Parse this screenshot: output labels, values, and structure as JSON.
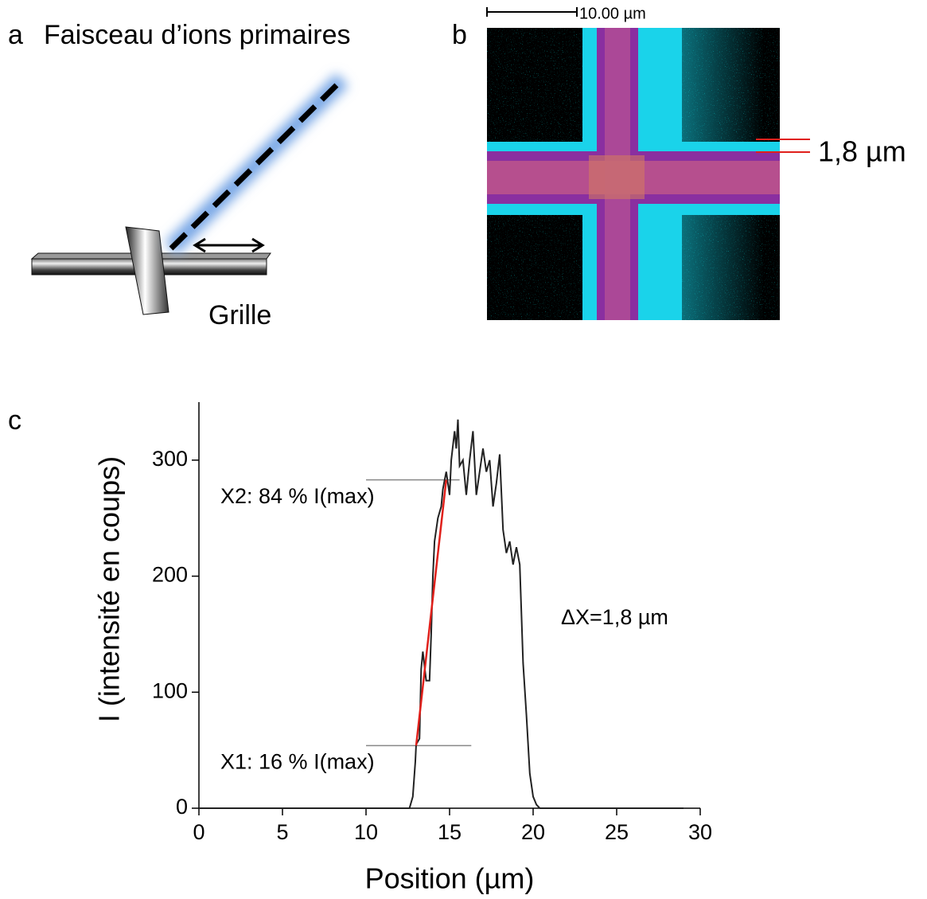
{
  "panel_a": {
    "label": "a",
    "title": "Faisceau d’ions primaires",
    "grid_label": "Grille"
  },
  "panel_b": {
    "label": "b",
    "scale_bar": "10.00 µm",
    "width_label": "1,8 µm"
  },
  "chart_data": {
    "type": "line",
    "panel_label": "c",
    "x_label": "Position (µm)",
    "y_label": "I (intensité en coups)",
    "x": [
      0,
      12.6,
      12.8,
      12.95,
      13.0,
      13.2,
      13.3,
      13.4,
      13.6,
      13.8,
      13.9,
      14.0,
      14.1,
      14.3,
      14.5,
      14.6,
      14.8,
      15.0,
      15.1,
      15.3,
      15.4,
      15.5,
      15.6,
      15.8,
      16.0,
      16.2,
      16.4,
      16.6,
      16.8,
      17.0,
      17.2,
      17.4,
      17.6,
      17.8,
      18.0,
      18.2,
      18.4,
      18.6,
      18.8,
      19.0,
      19.2,
      19.4,
      19.6,
      19.8,
      20.0,
      20.2,
      20.4,
      29.0
    ],
    "values": [
      0,
      0,
      10,
      40,
      55,
      60,
      120,
      135,
      110,
      110,
      150,
      200,
      230,
      250,
      260,
      275,
      290,
      270,
      300,
      325,
      310,
      335,
      295,
      300,
      270,
      300,
      325,
      270,
      290,
      310,
      290,
      300,
      260,
      280,
      305,
      240,
      220,
      230,
      210,
      225,
      210,
      125,
      80,
      30,
      10,
      3,
      0,
      0
    ],
    "color": "#222222",
    "xlim": [
      0,
      30
    ],
    "ylim": [
      0,
      350
    ],
    "xticks": [
      0,
      5,
      10,
      15,
      20,
      25,
      30
    ],
    "yticks": [
      0,
      100,
      200,
      300
    ],
    "annotations": [
      {
        "text": "X2: 84 % I(max)",
        "x": 10,
        "y": 283,
        "x_end": 15.6
      },
      {
        "text": "X1: 16 % I(max)",
        "x": 10,
        "y": 54,
        "x_end": 16.3
      }
    ],
    "fit_line": {
      "x": [
        13.0,
        14.8
      ],
      "y": [
        54,
        283
      ],
      "color": "#e0201b"
    },
    "delta_label": "ΔX=1,8 µm"
  }
}
